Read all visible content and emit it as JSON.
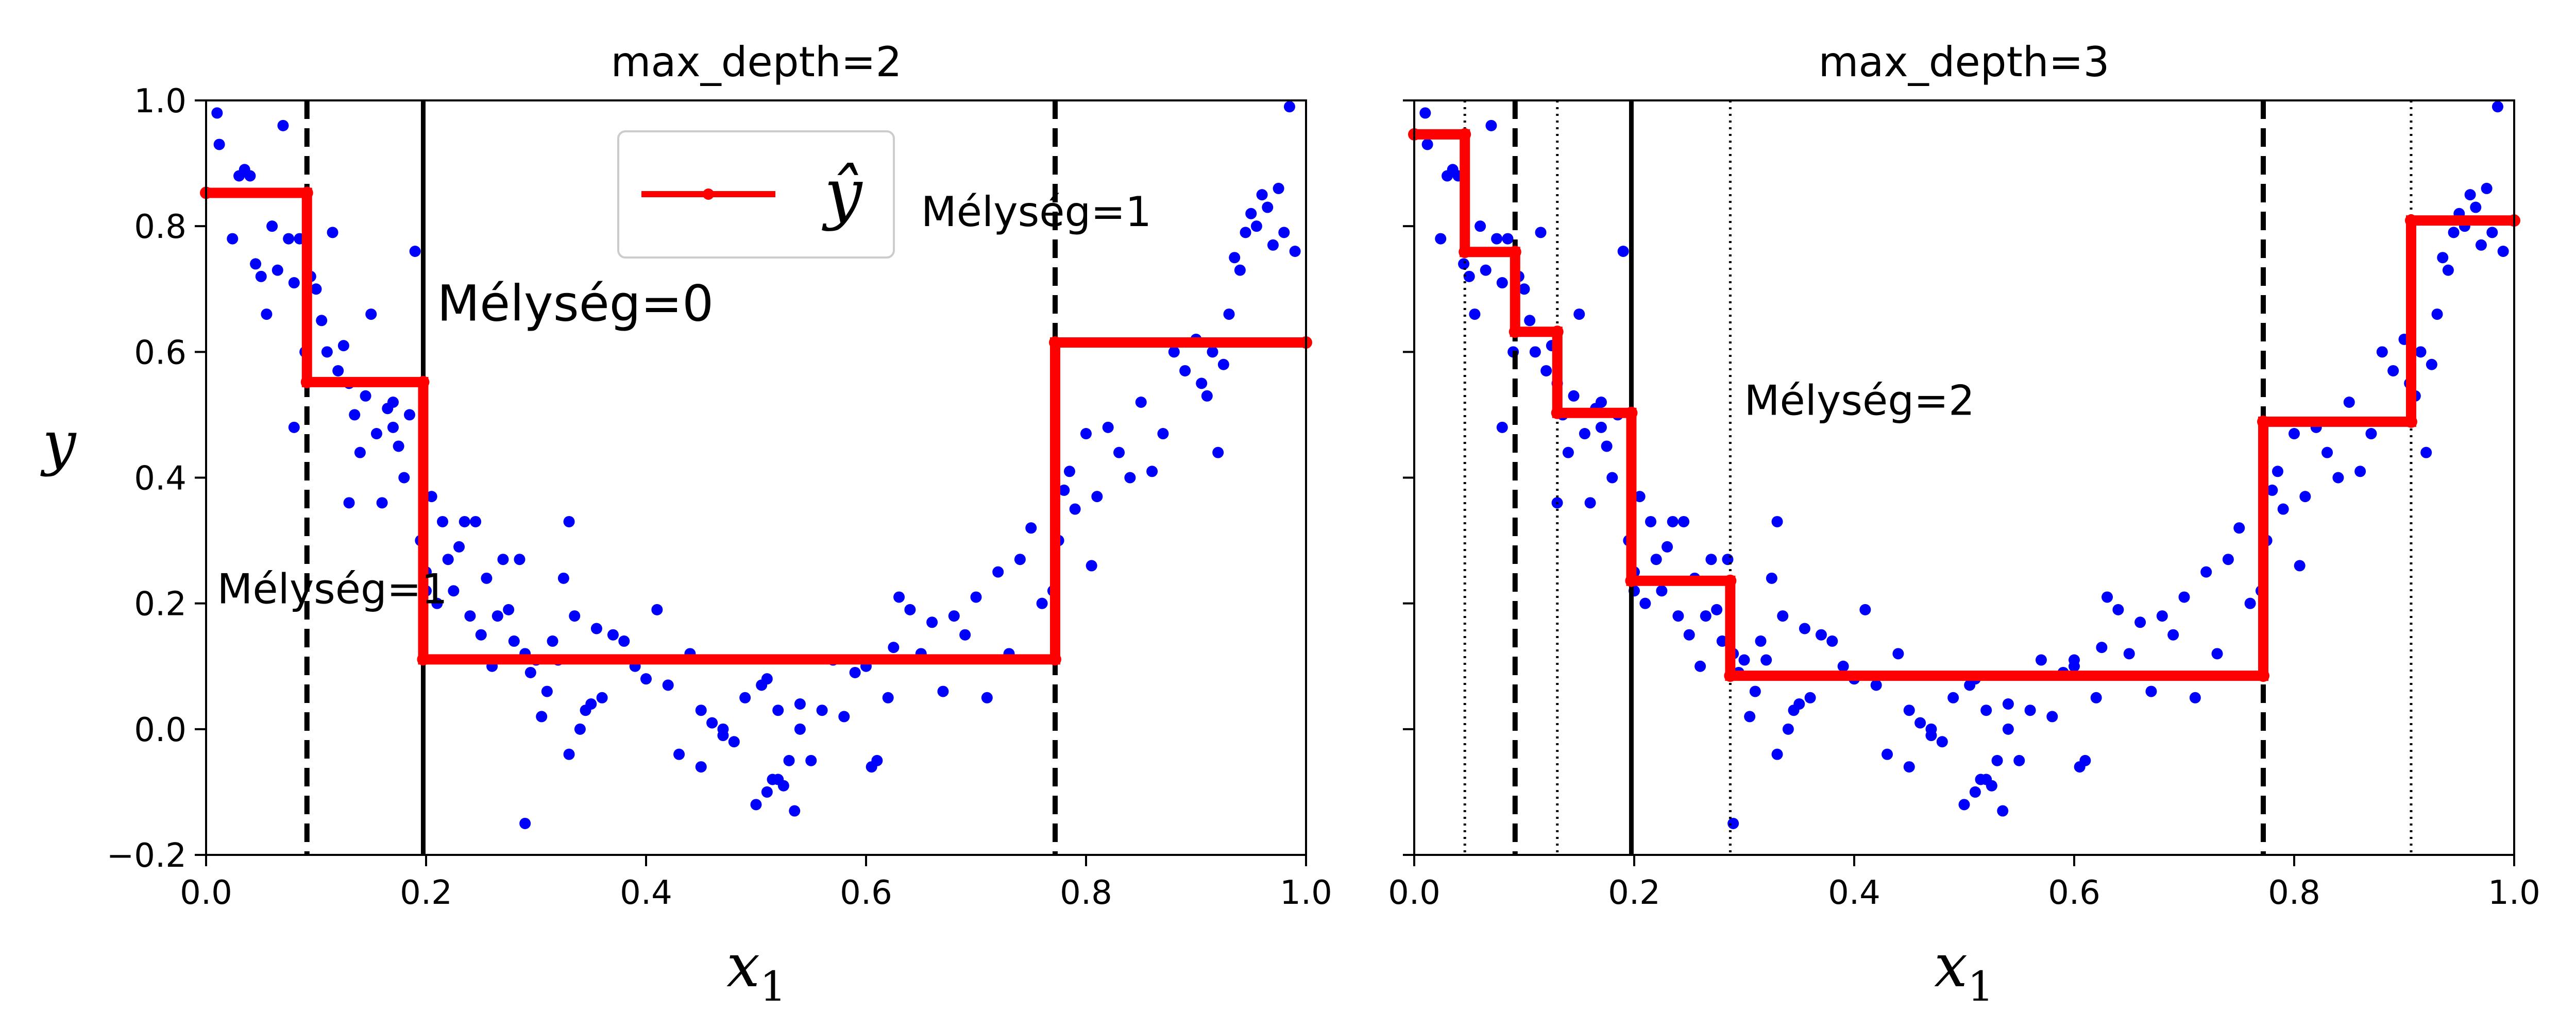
{
  "chart_data": [
    {
      "type": "scatter",
      "title": "max_depth=2",
      "xlabel": "x1",
      "ylabel": "y",
      "xlim": [
        0.0,
        1.0
      ],
      "ylim": [
        -0.2,
        1.0
      ],
      "xticks": [
        "0.0",
        "0.2",
        "0.4",
        "0.6",
        "0.8",
        "1.0"
      ],
      "yticks": [
        "−0.2",
        "0.0",
        "0.2",
        "0.4",
        "0.6",
        "0.8",
        "1.0"
      ],
      "legend": {
        "label": "ŷ",
        "placement": "top-center"
      },
      "grid": false,
      "series": [
        {
          "kind": "step",
          "color": "#ff0000",
          "name": "ŷ",
          "x": [
            0.0,
            0.0917,
            0.0917,
            0.1974,
            0.1974,
            0.7719,
            0.7719,
            1.0
          ],
          "y": [
            0.853,
            0.853,
            0.552,
            0.552,
            0.111,
            0.111,
            0.615,
            0.615
          ]
        }
      ],
      "vlines": [
        {
          "x": 0.1974,
          "style": "solid"
        },
        {
          "x": 0.0917,
          "style": "dashed"
        },
        {
          "x": 0.7719,
          "style": "dashed"
        }
      ],
      "annotations": [
        {
          "text": "Mélység=0",
          "x": 0.21,
          "y": 0.65,
          "size": "large"
        },
        {
          "text": "Mélység=1",
          "x": 0.01,
          "y": 0.2,
          "size": "normal"
        },
        {
          "text": "Mélység=1",
          "x": 0.65,
          "y": 0.8,
          "size": "normal"
        }
      ]
    },
    {
      "type": "scatter",
      "title": "max_depth=3",
      "xlabel": "x1",
      "xlim": [
        0.0,
        1.0
      ],
      "ylim": [
        -0.2,
        1.0
      ],
      "xticks": [
        "0.0",
        "0.2",
        "0.4",
        "0.6",
        "0.8",
        "1.0"
      ],
      "grid": false,
      "series": [
        {
          "kind": "step",
          "color": "#ff0000",
          "x": [
            0.0,
            0.046,
            0.046,
            0.0917,
            0.0917,
            0.1301,
            0.1301,
            0.1974,
            0.1974,
            0.2873,
            0.2873,
            0.7719,
            0.7719,
            0.9063,
            0.9063,
            1.0
          ],
          "y": [
            0.946,
            0.946,
            0.759,
            0.759,
            0.632,
            0.632,
            0.503,
            0.503,
            0.236,
            0.236,
            0.085,
            0.085,
            0.489,
            0.489,
            0.809,
            0.809
          ]
        }
      ],
      "vlines": [
        {
          "x": 0.1974,
          "style": "solid"
        },
        {
          "x": 0.0917,
          "style": "dashed"
        },
        {
          "x": 0.7719,
          "style": "dashed"
        },
        {
          "x": 0.046,
          "style": "dotted"
        },
        {
          "x": 0.1301,
          "style": "dotted"
        },
        {
          "x": 0.2873,
          "style": "dotted"
        },
        {
          "x": 0.9063,
          "style": "dotted"
        }
      ],
      "annotations": [
        {
          "text": "Mélység=2",
          "x": 0.3,
          "y": 0.5,
          "size": "normal"
        }
      ]
    }
  ],
  "scatter_points": {
    "color": "#0000ff",
    "x": [
      0.01,
      0.012,
      0.024,
      0.03,
      0.035,
      0.04,
      0.045,
      0.05,
      0.055,
      0.06,
      0.065,
      0.07,
      0.075,
      0.08,
      0.085,
      0.09,
      0.095,
      0.1,
      0.105,
      0.11,
      0.115,
      0.12,
      0.125,
      0.13,
      0.135,
      0.14,
      0.145,
      0.15,
      0.155,
      0.16,
      0.165,
      0.17,
      0.175,
      0.18,
      0.185,
      0.19,
      0.195,
      0.2,
      0.205,
      0.21,
      0.215,
      0.22,
      0.225,
      0.23,
      0.235,
      0.24,
      0.245,
      0.25,
      0.255,
      0.26,
      0.265,
      0.27,
      0.275,
      0.28,
      0.285,
      0.29,
      0.295,
      0.3,
      0.305,
      0.31,
      0.315,
      0.32,
      0.325,
      0.33,
      0.335,
      0.34,
      0.345,
      0.35,
      0.355,
      0.36,
      0.37,
      0.38,
      0.39,
      0.4,
      0.41,
      0.42,
      0.43,
      0.44,
      0.45,
      0.46,
      0.47,
      0.48,
      0.49,
      0.5,
      0.505,
      0.51,
      0.515,
      0.52,
      0.525,
      0.53,
      0.535,
      0.54,
      0.55,
      0.56,
      0.57,
      0.58,
      0.59,
      0.6,
      0.605,
      0.61,
      0.62,
      0.625,
      0.63,
      0.64,
      0.65,
      0.66,
      0.67,
      0.68,
      0.69,
      0.7,
      0.71,
      0.72,
      0.73,
      0.74,
      0.75,
      0.76,
      0.77,
      0.775,
      0.78,
      0.785,
      0.79,
      0.8,
      0.805,
      0.81,
      0.82,
      0.83,
      0.84,
      0.85,
      0.86,
      0.87,
      0.88,
      0.89,
      0.9,
      0.905,
      0.91,
      0.915,
      0.92,
      0.925,
      0.93,
      0.935,
      0.94,
      0.945,
      0.95,
      0.955,
      0.96,
      0.965,
      0.97,
      0.975,
      0.98,
      0.985,
      0.99,
      0.33,
      0.51,
      0.29,
      0.52,
      0.45,
      0.6,
      0.2,
      0.13,
      0.17,
      0.08,
      0.54,
      0.47
    ],
    "y": [
      0.98,
      0.93,
      0.78,
      0.88,
      0.89,
      0.88,
      0.74,
      0.72,
      0.66,
      0.8,
      0.73,
      0.96,
      0.78,
      0.71,
      0.78,
      0.6,
      0.72,
      0.7,
      0.65,
      0.6,
      0.79,
      0.57,
      0.61,
      0.55,
      0.5,
      0.44,
      0.53,
      0.66,
      0.47,
      0.36,
      0.51,
      0.48,
      0.45,
      0.4,
      0.5,
      0.76,
      0.3,
      0.25,
      0.37,
      0.2,
      0.33,
      0.27,
      0.22,
      0.29,
      0.33,
      0.18,
      0.33,
      0.15,
      0.24,
      0.1,
      0.18,
      0.27,
      0.19,
      0.14,
      0.27,
      0.12,
      0.09,
      0.11,
      0.02,
      0.06,
      0.14,
      0.11,
      0.24,
      0.33,
      0.18,
      0.0,
      0.03,
      0.04,
      0.16,
      0.05,
      0.15,
      0.14,
      0.1,
      0.08,
      0.19,
      0.07,
      -0.04,
      0.12,
      0.03,
      0.01,
      0.0,
      -0.02,
      0.05,
      -0.12,
      0.07,
      0.08,
      -0.08,
      0.03,
      -0.09,
      -0.05,
      -0.13,
      0.0,
      -0.05,
      0.03,
      0.11,
      0.02,
      0.09,
      0.1,
      -0.06,
      -0.05,
      0.05,
      0.13,
      0.21,
      0.19,
      0.12,
      0.17,
      0.06,
      0.18,
      0.15,
      0.21,
      0.05,
      0.25,
      0.12,
      0.27,
      0.32,
      0.2,
      0.22,
      0.3,
      0.38,
      0.41,
      0.35,
      0.47,
      0.26,
      0.37,
      0.48,
      0.44,
      0.4,
      0.52,
      0.41,
      0.47,
      0.6,
      0.57,
      0.62,
      0.55,
      0.53,
      0.6,
      0.44,
      0.58,
      0.66,
      0.75,
      0.73,
      0.79,
      0.82,
      0.8,
      0.85,
      0.83,
      0.77,
      0.86,
      0.79,
      0.99,
      0.76,
      -0.04,
      -0.1,
      -0.15,
      -0.08,
      -0.06,
      0.11,
      0.22,
      0.36,
      0.52,
      0.48,
      0.04,
      -0.01
    ]
  }
}
